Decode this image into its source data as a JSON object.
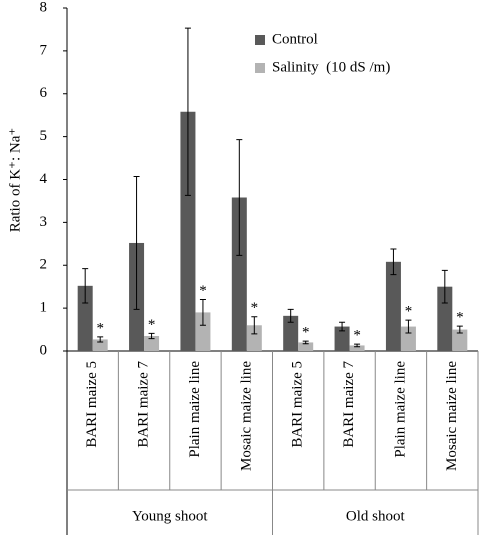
{
  "chart_data": {
    "type": "bar",
    "ylabel": "Ratio of K⁺: Na⁺",
    "categories": [
      "BARI maize 5",
      "BARI maize 7",
      "Plain maize line",
      "Mosaic maize line",
      "BARI maize 5",
      "BARI maize 7",
      "Plain maize line",
      "Mosaic maize line"
    ],
    "groups": [
      "Young shoot",
      "Old shoot"
    ],
    "series": [
      {
        "name": "Control",
        "color": "#595959",
        "values": [
          1.52,
          2.52,
          5.58,
          3.58,
          0.82,
          0.57,
          2.08,
          1.5
        ],
        "errors": [
          0.4,
          1.55,
          1.95,
          1.35,
          0.15,
          0.1,
          0.3,
          0.38
        ]
      },
      {
        "name": "Salinity  (10 dS /m)",
        "color": "#b3b3b3",
        "values": [
          0.27,
          0.35,
          0.9,
          0.6,
          0.2,
          0.13,
          0.57,
          0.5
        ],
        "errors": [
          0.06,
          0.06,
          0.3,
          0.2,
          0.03,
          0.03,
          0.15,
          0.08
        ],
        "annotations": [
          "*",
          "*",
          "*",
          "*",
          "*",
          "*",
          "*",
          "*"
        ]
      }
    ],
    "ylim": [
      0,
      8
    ],
    "yticks": [
      0,
      1,
      2,
      3,
      4,
      5,
      6,
      7,
      8
    ],
    "grid": false
  }
}
